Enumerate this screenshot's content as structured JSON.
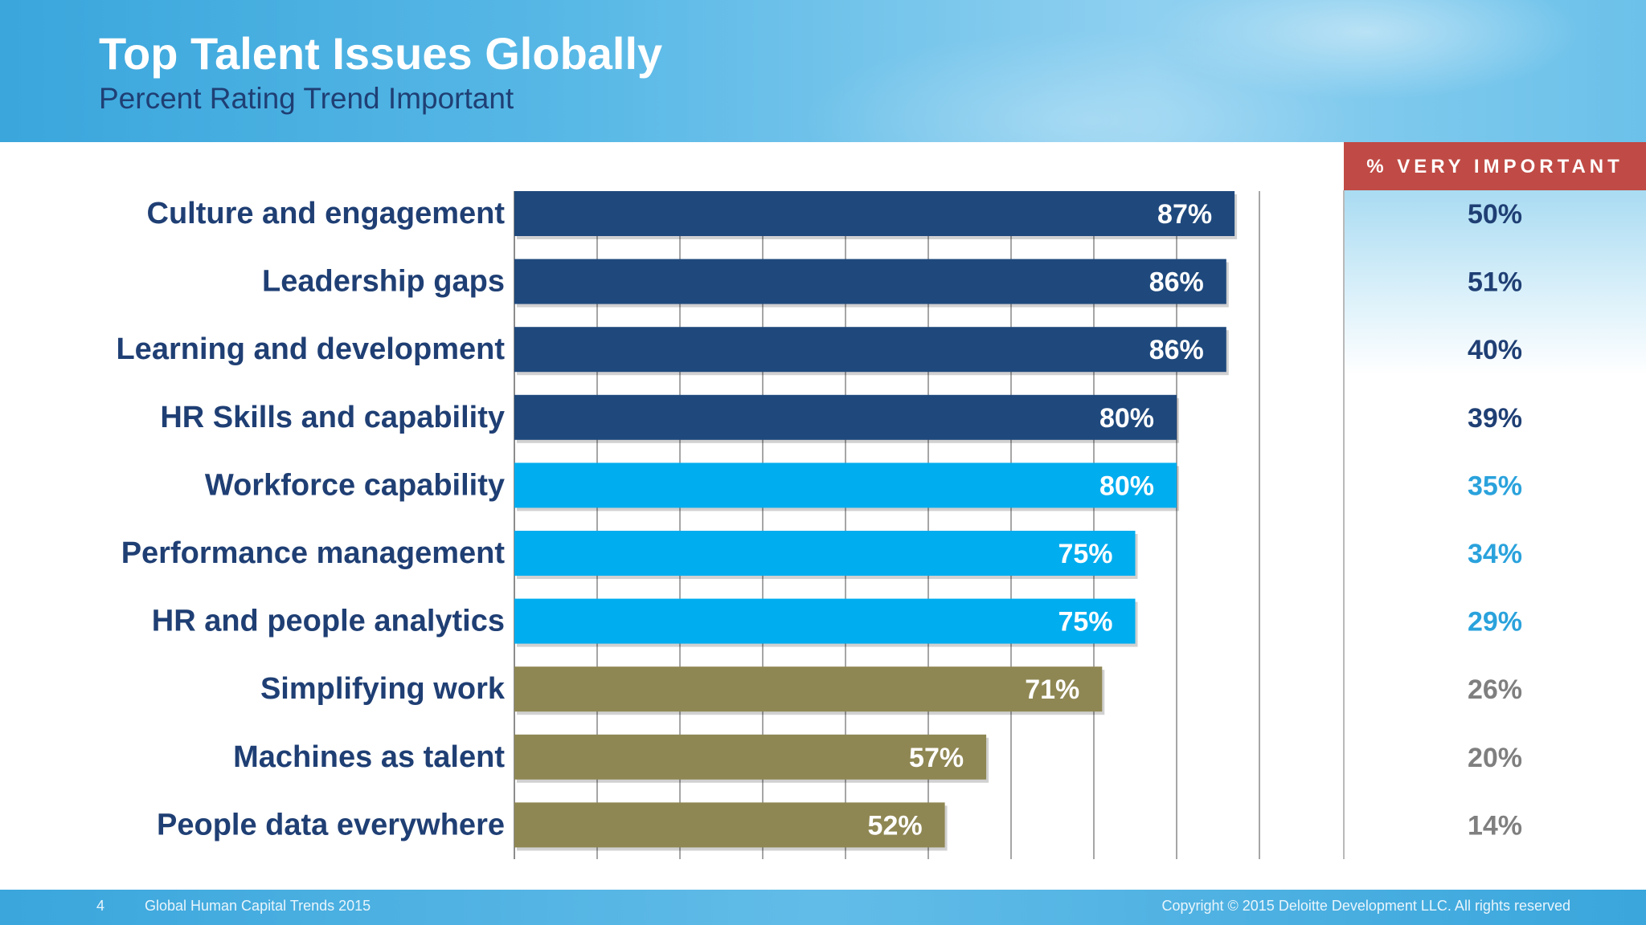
{
  "header": {
    "title": "Top Talent Issues Globally",
    "subtitle": "Percent Rating Trend Important"
  },
  "very_important_header": "% VERY IMPORTANT",
  "footer": {
    "page_number": "4",
    "report_name": "Global Human Capital Trends 2015",
    "copyright": "Copyright © 2015 Deloitte Development LLC. All rights reserved"
  },
  "colors": {
    "dark_blue": "#1f497d",
    "bright_blue": "#00adef",
    "olive": "#8f8753",
    "label_text": "#1f3f74",
    "vi_bright_blue": "#2aa2dc",
    "vi_gray": "#7f7f7f",
    "vi_header_bg": "#c04a45"
  },
  "chart_data": {
    "type": "bar",
    "orientation": "horizontal",
    "title": "Top Talent Issues Globally",
    "subtitle": "Percent Rating Trend Important",
    "xlim": [
      0,
      90
    ],
    "grid": true,
    "categories": [
      "Culture and engagement",
      "Leadership gaps",
      "Learning and development",
      "HR Skills and capability",
      "Workforce capability",
      "Performance management",
      "HR and people analytics",
      "Simplifying work",
      "Machines as talent",
      "People data everywhere"
    ],
    "values": [
      87,
      86,
      86,
      80,
      80,
      75,
      75,
      71,
      57,
      52
    ],
    "value_labels": [
      "87%",
      "86%",
      "86%",
      "80%",
      "80%",
      "75%",
      "75%",
      "71%",
      "57%",
      "52%"
    ],
    "bar_color_groups": [
      "dark_blue",
      "dark_blue",
      "dark_blue",
      "dark_blue",
      "bright_blue",
      "bright_blue",
      "bright_blue",
      "olive",
      "olive",
      "olive"
    ],
    "very_important": {
      "label": "% VERY IMPORTANT",
      "values": [
        50,
        51,
        40,
        39,
        35,
        34,
        29,
        26,
        20,
        14
      ],
      "value_labels": [
        "50%",
        "51%",
        "40%",
        "39%",
        "35%",
        "34%",
        "29%",
        "26%",
        "20%",
        "14%"
      ]
    }
  }
}
